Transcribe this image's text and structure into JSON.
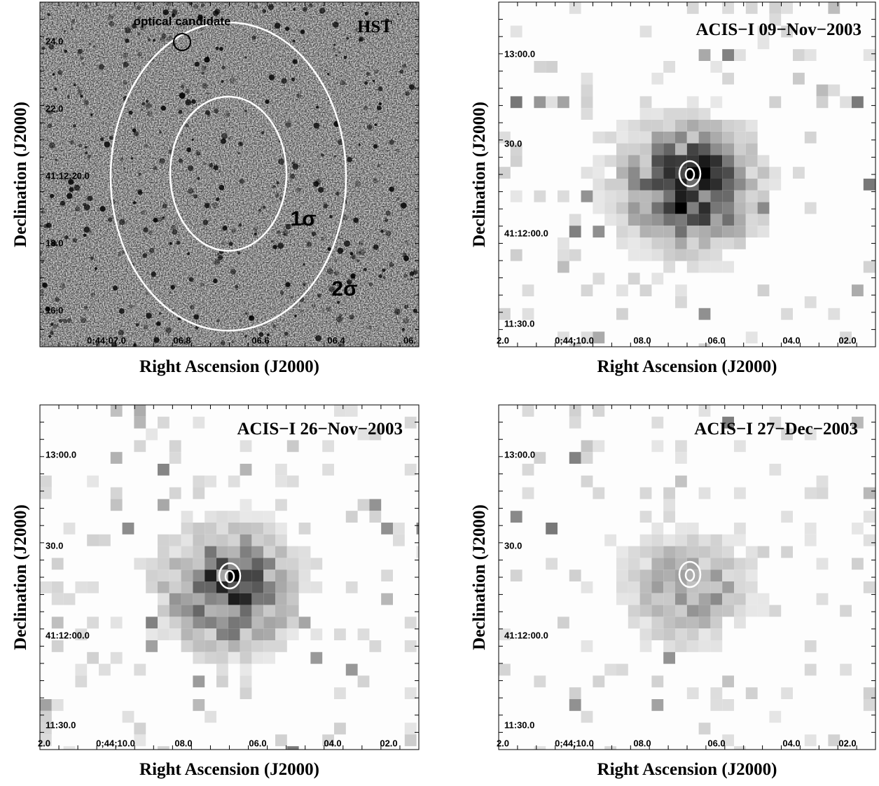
{
  "panels": [
    {
      "title": "HST",
      "ylabel": "Declination (J2000)",
      "xlabel": "Right Ascension (J2000)",
      "yticks": [
        "24.0",
        "22.0",
        "41:12:20.0",
        "18.0",
        "16.0"
      ],
      "xticks": [
        "0;44;07.0",
        "06.8",
        "06.6",
        "06.4",
        "06."
      ],
      "annotations": [
        "optical candidate",
        "1σ",
        "2σ"
      ]
    },
    {
      "title": "ACIS−I 09−Nov−2003",
      "ylabel": "Declination (J2000)",
      "xlabel": "Right Ascension (J2000)",
      "yticks": [
        "13:00.0",
        "30.0",
        "41:12:00.0",
        "11:30.0"
      ],
      "xticks": [
        "2.0",
        "0;44;10.0",
        "08.0",
        "06.0",
        "04.0",
        "02.0"
      ]
    },
    {
      "title": "ACIS−I 26−Nov−2003",
      "ylabel": "Declination (J2000)",
      "xlabel": "Right Ascension (J2000)",
      "yticks": [
        "13:00.0",
        "30.0",
        "41:12:00.0",
        "11:30.0"
      ],
      "xticks": [
        "2.0",
        "0;44;10.0",
        "08.0",
        "06.0",
        "04.0",
        "02.0"
      ]
    },
    {
      "title": "ACIS−I 27−Dec−2003",
      "ylabel": "Declination (J2000)",
      "xlabel": "Right Ascension (J2000)",
      "yticks": [
        "13:00.0",
        "30.0",
        "41:12:00.0",
        "11:30.0"
      ],
      "xticks": [
        "2.0",
        "0;44;10.0",
        "08.0",
        "06.0",
        "04.0",
        "02.0"
      ]
    }
  ]
}
